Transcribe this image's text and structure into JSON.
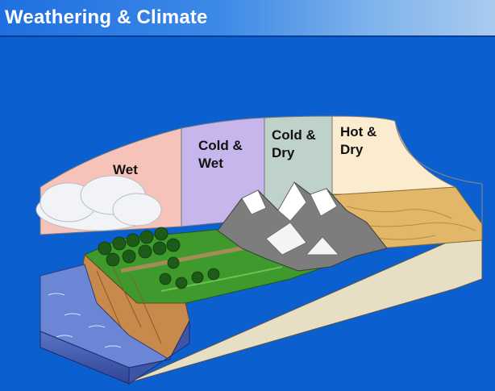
{
  "header": {
    "title": "Weathering & Climate"
  },
  "zones": [
    {
      "label": "Wet",
      "color": "#f6c3bb"
    },
    {
      "label_line1": "Cold &",
      "label_line2": "Wet",
      "color": "#c6b6ec"
    },
    {
      "label_line1": "Cold &",
      "label_line2": "Dry",
      "color": "#bfd2c9"
    },
    {
      "label_line1": "Hot &",
      "label_line2": "Dry",
      "color": "#fbeccf"
    }
  ],
  "colors": {
    "background": "#0b5fcf",
    "title_text": "#ffffff",
    "water": "#3d55a8",
    "grass": "#3f9a2e",
    "desert": "#e2b76a",
    "block_side": "#ece6cf"
  }
}
